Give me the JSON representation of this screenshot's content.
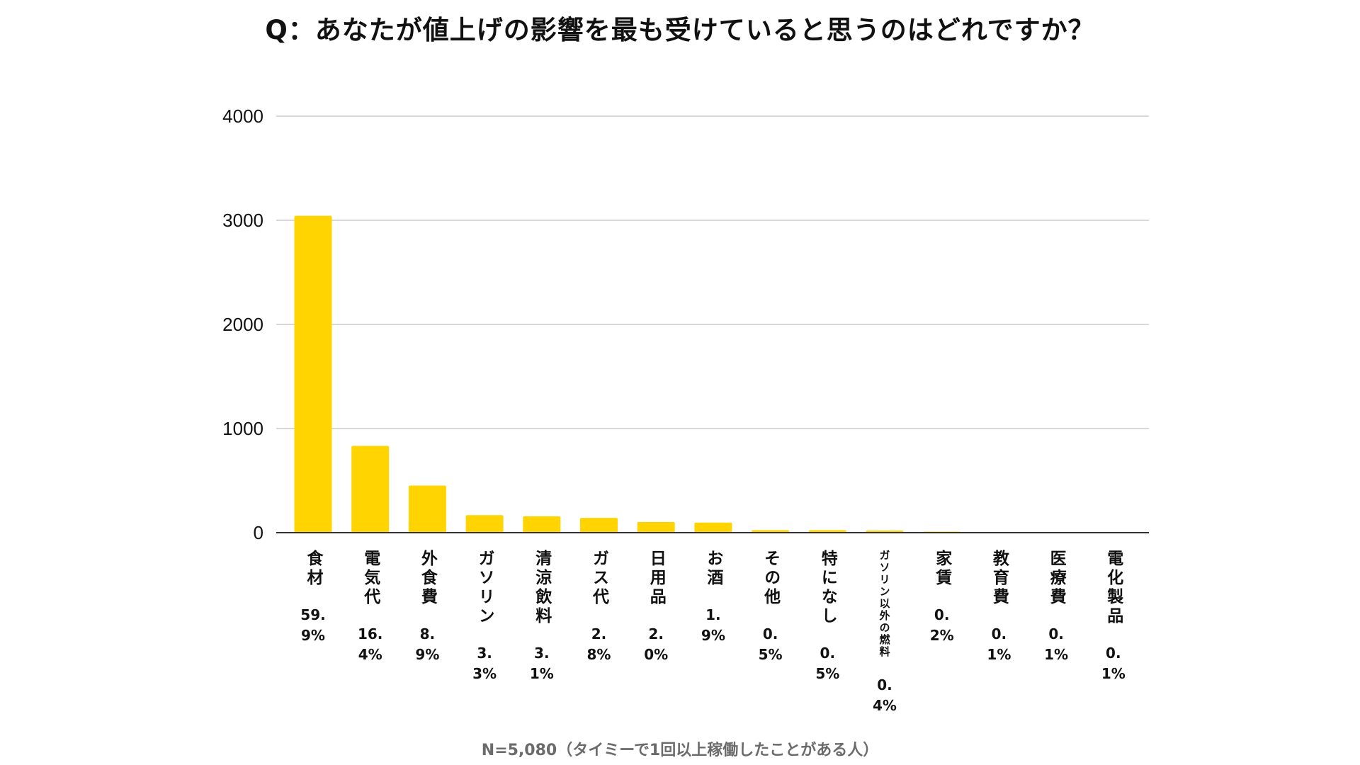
{
  "chart_data": {
    "type": "bar",
    "title": "Q：あなたが値上げの影響を最も受けていると思うのはどれですか？",
    "note": "N=5,080（タイミーで1回以上稼働したことがある人）",
    "xlabel": "",
    "ylabel": "",
    "ylim": [
      0,
      4000
    ],
    "yticks": [
      0,
      1000,
      2000,
      3000,
      4000
    ],
    "grid": true,
    "categories": [
      "食材",
      "電気代",
      "外食費",
      "ガソリン",
      "清涼飲料",
      "ガス代",
      "日用品",
      "お酒",
      "その他",
      "特になし",
      "ガソリン以外の燃料",
      "家賃",
      "教育費",
      "医療費",
      "電化製品"
    ],
    "values": [
      3043,
      833,
      452,
      168,
      157,
      142,
      102,
      97,
      25,
      25,
      20,
      10,
      5,
      5,
      5
    ],
    "percent_labels": [
      "59.9%",
      "16.4%",
      "8.9%",
      "3.3%",
      "3.1%",
      "2.8%",
      "2.0%",
      "1.9%",
      "0.5%",
      "0.5%",
      "0.4%",
      "0.2%",
      "0.1%",
      "0.1%",
      "0.1%"
    ],
    "bar_color": "#FFD400",
    "grid_color": "#cccccc",
    "axis_color": "#333333",
    "note_color": "#6b6b6b"
  }
}
